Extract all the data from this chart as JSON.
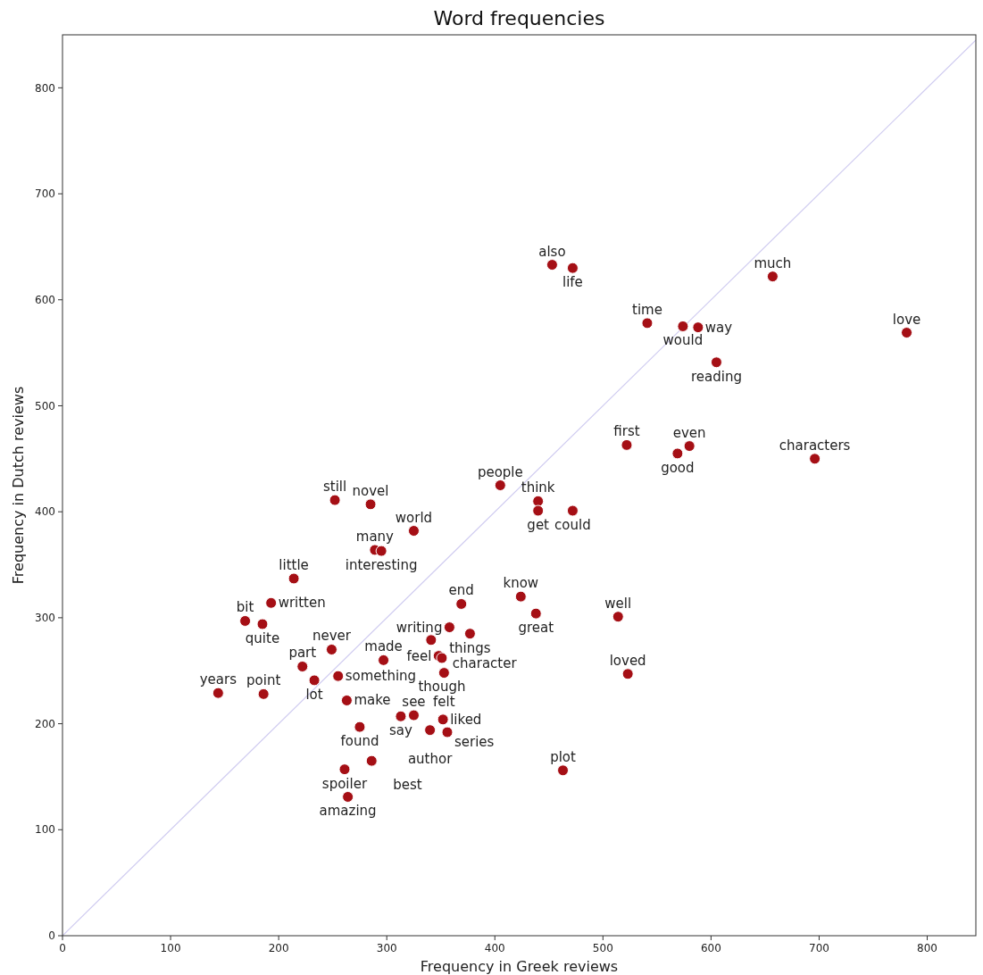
{
  "chart_data": {
    "type": "scatter",
    "title": "Word frequencies",
    "xlabel": "Frequency in Greek reviews",
    "ylabel": "Frequency in Dutch reviews",
    "xlim": [
      0,
      845
    ],
    "ylim": [
      0,
      850
    ],
    "xticks": [
      0,
      100,
      200,
      300,
      400,
      500,
      600,
      700,
      800
    ],
    "yticks": [
      0,
      100,
      200,
      300,
      400,
      500,
      600,
      700,
      800
    ],
    "grid": false,
    "marker": "circle",
    "series": [
      {
        "type": "line",
        "marker": "none",
        "color": "#cfcbf0",
        "x": [
          0,
          845
        ],
        "values": [
          0,
          845
        ]
      },
      {
        "color": "#a50f15",
        "x": [
          453,
          472,
          657,
          541,
          574,
          588,
          781,
          605,
          522,
          569,
          580,
          696,
          405,
          252,
          285,
          440,
          440,
          472,
          325,
          289,
          295,
          214,
          193,
          169,
          185,
          369,
          424,
          438,
          514,
          358,
          377,
          341,
          348,
          351,
          353,
          249,
          222,
          233,
          297,
          255,
          144,
          186,
          263,
          275,
          313,
          325,
          352,
          340,
          356,
          261,
          286,
          264,
          463,
          523
        ],
        "values": [
          633,
          630,
          622,
          578,
          575,
          574,
          569,
          541,
          463,
          455,
          462,
          450,
          425,
          411,
          407,
          410,
          401,
          401,
          382,
          364,
          363,
          337,
          314,
          297,
          294,
          313,
          320,
          304,
          301,
          291,
          285,
          279,
          264,
          262,
          248,
          270,
          254,
          241,
          260,
          245,
          229,
          228,
          222,
          197,
          207,
          208,
          204,
          194,
          192,
          157,
          165,
          131,
          156,
          247
        ]
      }
    ],
    "annotations": [
      {
        "text": "also",
        "x": 453,
        "y": 633
      },
      {
        "text": "life",
        "x": 472,
        "y": 630
      },
      {
        "text": "much",
        "x": 657,
        "y": 622
      },
      {
        "text": "time",
        "x": 541,
        "y": 578
      },
      {
        "text": "would",
        "x": 574,
        "y": 575
      },
      {
        "text": "way",
        "x": 588,
        "y": 574
      },
      {
        "text": "love",
        "x": 781,
        "y": 569
      },
      {
        "text": "reading",
        "x": 605,
        "y": 541
      },
      {
        "text": "first",
        "x": 522,
        "y": 463
      },
      {
        "text": "good",
        "x": 569,
        "y": 455
      },
      {
        "text": "even",
        "x": 580,
        "y": 462
      },
      {
        "text": "characters",
        "x": 696,
        "y": 450
      },
      {
        "text": "people",
        "x": 405,
        "y": 425
      },
      {
        "text": "still",
        "x": 252,
        "y": 411
      },
      {
        "text": "novel",
        "x": 285,
        "y": 407
      },
      {
        "text": "think",
        "x": 440,
        "y": 410
      },
      {
        "text": "get",
        "x": 440,
        "y": 401
      },
      {
        "text": "could",
        "x": 472,
        "y": 401
      },
      {
        "text": "world",
        "x": 325,
        "y": 382
      },
      {
        "text": "many",
        "x": 289,
        "y": 364
      },
      {
        "text": "interesting",
        "x": 295,
        "y": 363
      },
      {
        "text": "little",
        "x": 214,
        "y": 337
      },
      {
        "text": "written",
        "x": 193,
        "y": 314
      },
      {
        "text": "bit",
        "x": 169,
        "y": 297
      },
      {
        "text": "quite",
        "x": 185,
        "y": 294
      },
      {
        "text": "end",
        "x": 369,
        "y": 313
      },
      {
        "text": "know",
        "x": 424,
        "y": 320
      },
      {
        "text": "great",
        "x": 438,
        "y": 304
      },
      {
        "text": "well",
        "x": 514,
        "y": 301
      },
      {
        "text": "writing",
        "x": 358,
        "y": 291
      },
      {
        "text": "things",
        "x": 377,
        "y": 285
      },
      {
        "text": "character",
        "x": 341,
        "y": 279
      },
      {
        "text": "feel",
        "x": 348,
        "y": 264
      },
      {
        "text": "though",
        "x": 351,
        "y": 262
      },
      {
        "text": "felt",
        "x": 353,
        "y": 248
      },
      {
        "text": "never",
        "x": 249,
        "y": 270
      },
      {
        "text": "part",
        "x": 222,
        "y": 254
      },
      {
        "text": "lot",
        "x": 233,
        "y": 241
      },
      {
        "text": "made",
        "x": 297,
        "y": 260
      },
      {
        "text": "something",
        "x": 255,
        "y": 245
      },
      {
        "text": "years",
        "x": 144,
        "y": 229
      },
      {
        "text": "point",
        "x": 186,
        "y": 228
      },
      {
        "text": "make",
        "x": 263,
        "y": 222
      },
      {
        "text": "found",
        "x": 275,
        "y": 197
      },
      {
        "text": "say",
        "x": 313,
        "y": 207
      },
      {
        "text": "see",
        "x": 325,
        "y": 208
      },
      {
        "text": "liked",
        "x": 352,
        "y": 204
      },
      {
        "text": "author",
        "x": 340,
        "y": 194
      },
      {
        "text": "series",
        "x": 356,
        "y": 192
      },
      {
        "text": "spoiler",
        "x": 261,
        "y": 157
      },
      {
        "text": "best",
        "x": 286,
        "y": 165
      },
      {
        "text": "amazing",
        "x": 264,
        "y": 131
      },
      {
        "text": "plot",
        "x": 463,
        "y": 156
      },
      {
        "text": "loved",
        "x": 523,
        "y": 247
      }
    ]
  }
}
